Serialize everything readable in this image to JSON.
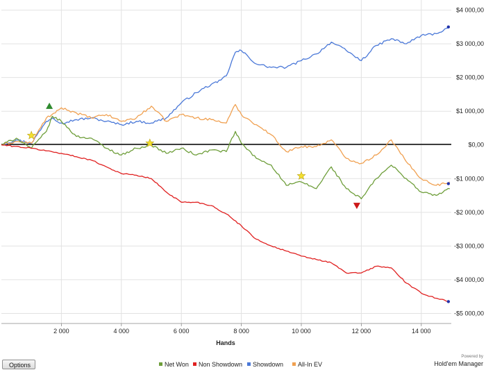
{
  "footer": {
    "options_label": "Options",
    "powered_by": "Powered by",
    "brand": "Hold'em Manager"
  },
  "chart_data": {
    "type": "line",
    "title": "",
    "xlabel": "Hands",
    "ylabel": "",
    "xlim": [
      0,
      15000
    ],
    "ylim": [
      -5300,
      4300
    ],
    "x_ticks": [
      {
        "value": 2000,
        "label": "2 000"
      },
      {
        "value": 4000,
        "label": "4 000"
      },
      {
        "value": 6000,
        "label": "6 000"
      },
      {
        "value": 8000,
        "label": "8 000"
      },
      {
        "value": 10000,
        "label": "10 000"
      },
      {
        "value": 12000,
        "label": "12 000"
      },
      {
        "value": 14000,
        "label": "14 000"
      }
    ],
    "y_ticks": [
      {
        "value": 4000,
        "label": "$4 000,00"
      },
      {
        "value": 3000,
        "label": "$3 000,00"
      },
      {
        "value": 2000,
        "label": "$2 000,00"
      },
      {
        "value": 1000,
        "label": "$1 000,00"
      },
      {
        "value": 0,
        "label": "$0,00"
      },
      {
        "value": -1000,
        "label": "-$1 000,00"
      },
      {
        "value": -2000,
        "label": "-$2 000,00"
      },
      {
        "value": -3000,
        "label": "-$3 000,00"
      },
      {
        "value": -4000,
        "label": "-$4 000,00"
      },
      {
        "value": -5000,
        "label": "-$5 000,00"
      }
    ],
    "grid": true,
    "legend_position": "bottom",
    "series": [
      {
        "name": "Showdown",
        "color": "#4a78d8",
        "x": [
          0,
          500,
          1000,
          1500,
          1700,
          2000,
          2500,
          3000,
          3500,
          4000,
          4500,
          5000,
          5500,
          6000,
          6500,
          7000,
          7200,
          7500,
          7800,
          8000,
          8500,
          9000,
          9500,
          10000,
          10500,
          11000,
          11500,
          12000,
          12500,
          13000,
          13500,
          14000,
          14500,
          14950
        ],
        "y": [
          0,
          150,
          50,
          700,
          800,
          650,
          750,
          800,
          700,
          600,
          700,
          650,
          800,
          1250,
          1550,
          1800,
          1850,
          2050,
          2750,
          2800,
          2400,
          2300,
          2300,
          2500,
          2700,
          3050,
          2800,
          2500,
          2950,
          3150,
          3000,
          3250,
          3300,
          3500
        ]
      },
      {
        "name": "All-In EV",
        "color": "#f0a050",
        "x": [
          0,
          500,
          1000,
          1500,
          1800,
          2000,
          2500,
          3000,
          3500,
          4000,
          4500,
          5000,
          5500,
          6000,
          6500,
          7000,
          7500,
          7800,
          8000,
          8500,
          9000,
          9500,
          10000,
          10500,
          11000,
          11500,
          12000,
          12500,
          13000,
          13500,
          14000,
          14500,
          14950
        ],
        "y": [
          0,
          100,
          50,
          800,
          950,
          1100,
          950,
          800,
          900,
          700,
          800,
          1150,
          700,
          900,
          800,
          750,
          650,
          1200,
          900,
          600,
          300,
          -200,
          -50,
          -50,
          150,
          -400,
          -550,
          -300,
          150,
          -500,
          -1000,
          -1200,
          -1100
        ]
      },
      {
        "name": "Net Won",
        "color": "#6e9e3a",
        "x": [
          0,
          500,
          1000,
          1500,
          1700,
          2000,
          2500,
          3000,
          3500,
          4000,
          4500,
          5000,
          5500,
          6000,
          6500,
          7000,
          7500,
          7800,
          8000,
          8500,
          9000,
          9500,
          10000,
          10500,
          11000,
          11500,
          12000,
          12500,
          13000,
          13500,
          14000,
          14500,
          14950
        ],
        "y": [
          0,
          200,
          -100,
          400,
          850,
          700,
          250,
          200,
          -100,
          -300,
          -100,
          0,
          -250,
          -100,
          -300,
          -150,
          -200,
          400,
          50,
          -400,
          -600,
          -1200,
          -1100,
          -1300,
          -650,
          -1300,
          -1600,
          -1000,
          -600,
          -1000,
          -1400,
          -1500,
          -1300
        ]
      },
      {
        "name": "Non Showdown",
        "color": "#e02020",
        "x": [
          0,
          1000,
          2000,
          2500,
          3000,
          3500,
          4000,
          4500,
          5000,
          5500,
          6000,
          6500,
          7000,
          7500,
          8000,
          8500,
          9000,
          9500,
          10000,
          10500,
          11000,
          11500,
          12000,
          12500,
          13000,
          13500,
          14000,
          14500,
          14950
        ],
        "y": [
          0,
          -100,
          -250,
          -350,
          -450,
          -650,
          -850,
          -900,
          -1000,
          -1400,
          -1700,
          -1700,
          -1800,
          -2050,
          -2400,
          -2800,
          -3000,
          -3150,
          -3300,
          -3400,
          -3500,
          -3800,
          -3800,
          -3600,
          -3650,
          -4100,
          -4400,
          -4550,
          -4650
        ]
      }
    ],
    "markers": [
      {
        "type": "triangle-up",
        "x": 1600,
        "y": 1150,
        "color": "#2e8a2e"
      },
      {
        "type": "triangle-down",
        "x": 11850,
        "y": -1800,
        "color": "#cc1818"
      },
      {
        "type": "star",
        "x": 1000,
        "y": 280,
        "color": "#f4e030"
      },
      {
        "type": "star",
        "x": 4950,
        "y": 50,
        "color": "#f4e030"
      },
      {
        "type": "star",
        "x": 10000,
        "y": -920,
        "color": "#f4e030"
      },
      {
        "type": "dot",
        "x": 14950,
        "y": 3500,
        "color": "#2233aa"
      },
      {
        "type": "dot",
        "x": 14950,
        "y": -1150,
        "color": "#2233aa"
      },
      {
        "type": "dot",
        "x": 14950,
        "y": -4650,
        "color": "#2233aa"
      }
    ]
  }
}
